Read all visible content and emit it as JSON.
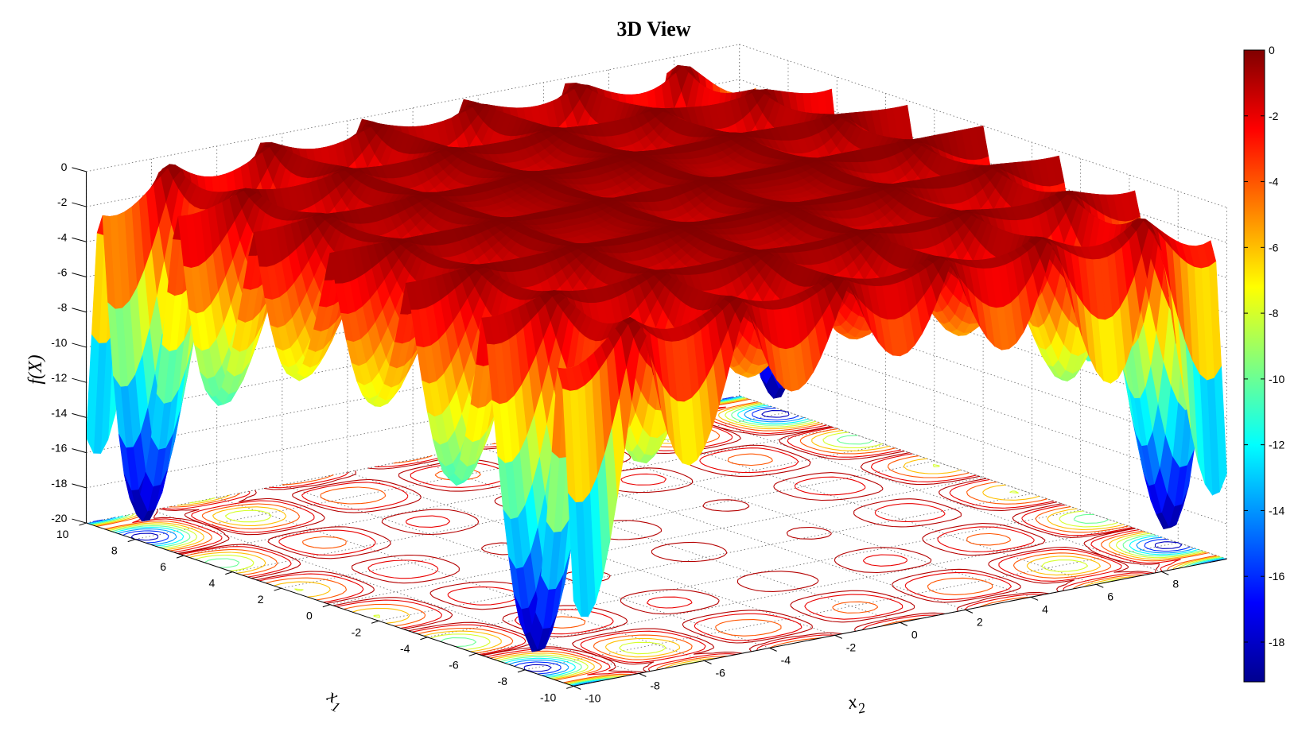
{
  "chart_data": {
    "type": "surface",
    "title": "3D View",
    "xlabel": {
      "var": "x",
      "sub": "1"
    },
    "ylabel": {
      "var": "x",
      "sub": "2"
    },
    "zlabel": "f(X)",
    "x1_range": [
      -10,
      10
    ],
    "x2_range": [
      -10,
      10
    ],
    "zlim": [
      -20,
      0
    ],
    "clim": [
      -19.2085,
      0
    ],
    "global_minima": [
      [
        8.055,
        9.665
      ],
      [
        -8.055,
        9.665
      ],
      [
        8.055,
        -9.665
      ],
      [
        -8.055,
        -9.665
      ]
    ],
    "global_min_value": -19.2085,
    "x1_ticks": [
      "-10",
      "-8",
      "-6",
      "-4",
      "-2",
      "0",
      "2",
      "4",
      "6",
      "8",
      "10"
    ],
    "x2_ticks": [
      "-10",
      "-8",
      "-6",
      "-4",
      "-2",
      "0",
      "2",
      "4",
      "6",
      "8"
    ],
    "z_ticks": [
      "-20",
      "-18",
      "-16",
      "-14",
      "-12",
      "-10",
      "-8",
      "-6",
      "-4",
      "-2",
      "0"
    ],
    "colorbar_ticks": [
      "-18",
      "-16",
      "-14",
      "-12",
      "-10",
      "-8",
      "-6",
      "-4",
      "-2",
      "0"
    ],
    "contour_levels": [
      -18,
      -16,
      -14,
      -12,
      -10,
      -8,
      -6,
      -4,
      -2,
      -1
    ],
    "colormap": "jet",
    "grid": true,
    "colorbar": "right"
  }
}
